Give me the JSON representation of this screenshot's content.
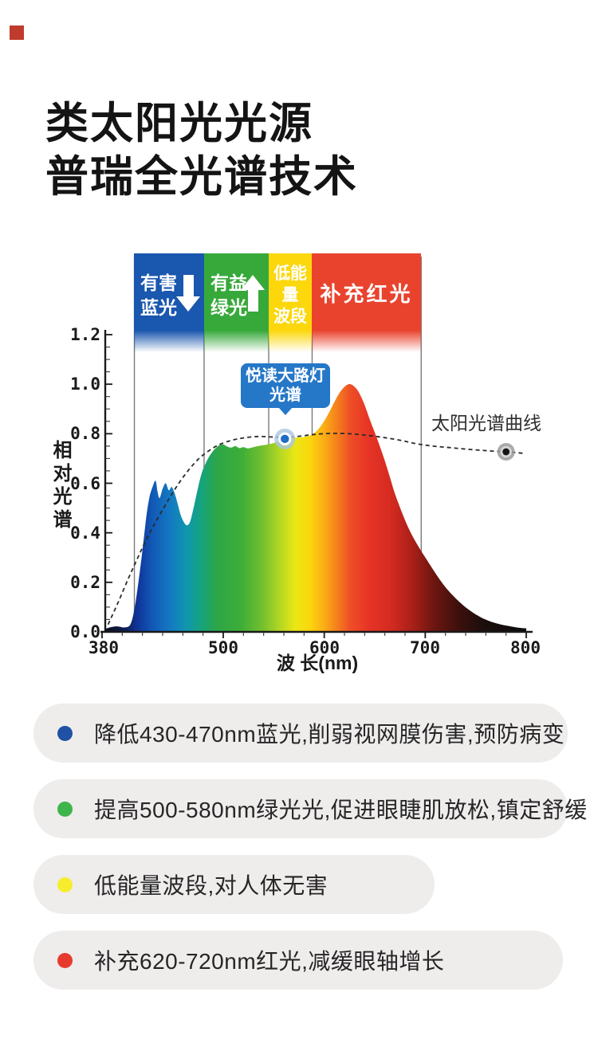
{
  "logo_color": "#bf3b2c",
  "title": {
    "line1": "类太阳光光源",
    "line2": "普瑞全光谱技术"
  },
  "chart": {
    "bands": [
      {
        "id": "blue",
        "lines": [
          "有害",
          "蓝光"
        ],
        "trend": "down",
        "color": "#1a57ae"
      },
      {
        "id": "green",
        "lines": [
          "有益",
          "绿光"
        ],
        "trend": "up",
        "color": "#37a93a"
      },
      {
        "id": "yellow",
        "lines": [
          "低能",
          "量",
          "波段"
        ],
        "trend": null,
        "color": "#fbd70c"
      },
      {
        "id": "red",
        "lines": [
          "补充红光"
        ],
        "trend": null,
        "color": "#e9432e"
      }
    ],
    "callout": {
      "line1": "悦读大路灯",
      "line2": "光谱",
      "bg": "#2577c8"
    },
    "sun_label": "太阳光谱曲线",
    "y_label": "相对光谱",
    "x_label": "波 长(nm)",
    "y_ticks": [
      "1.2",
      "1.0",
      "0.8",
      "0.6",
      "0.4",
      "0.2",
      "0.0"
    ],
    "x_ticks": [
      "380",
      "500",
      "600",
      "700",
      "800"
    ]
  },
  "chart_data": {
    "type": "area",
    "xlabel": "波 长(nm)",
    "ylabel": "相对光谱",
    "xlim": [
      380,
      800
    ],
    "ylim": [
      0.0,
      1.2
    ],
    "x_tick_values": [
      380,
      500,
      600,
      700,
      800
    ],
    "y_tick_values": [
      0.0,
      0.2,
      0.4,
      0.6,
      0.8,
      1.0,
      1.2
    ],
    "grid": false,
    "band_boundaries_nm": [
      412,
      481,
      545,
      588,
      696
    ],
    "series": [
      {
        "name": "悦读大路灯光谱",
        "style": "filled-spectrum-gradient",
        "points": [
          [
            383,
            0.012
          ],
          [
            390,
            0.02
          ],
          [
            396,
            0.022
          ],
          [
            402,
            0.018
          ],
          [
            408,
            0.03
          ],
          [
            412,
            0.09
          ],
          [
            416,
            0.2
          ],
          [
            420,
            0.33
          ],
          [
            424,
            0.47
          ],
          [
            427,
            0.545
          ],
          [
            430,
            0.585
          ],
          [
            433,
            0.61
          ],
          [
            435,
            0.565
          ],
          [
            437,
            0.54
          ],
          [
            440,
            0.578
          ],
          [
            443,
            0.6
          ],
          [
            446,
            0.572
          ],
          [
            449,
            0.585
          ],
          [
            452,
            0.558
          ],
          [
            455,
            0.515
          ],
          [
            458,
            0.47
          ],
          [
            461,
            0.443
          ],
          [
            464,
            0.43
          ],
          [
            467,
            0.443
          ],
          [
            470,
            0.49
          ],
          [
            473,
            0.545
          ],
          [
            476,
            0.6
          ],
          [
            479,
            0.645
          ],
          [
            482,
            0.675
          ],
          [
            485,
            0.7
          ],
          [
            488,
            0.72
          ],
          [
            492,
            0.74
          ],
          [
            496,
            0.753
          ],
          [
            500,
            0.757
          ],
          [
            504,
            0.748
          ],
          [
            508,
            0.744
          ],
          [
            512,
            0.75
          ],
          [
            516,
            0.742
          ],
          [
            520,
            0.746
          ],
          [
            524,
            0.741
          ],
          [
            528,
            0.744
          ],
          [
            532,
            0.748
          ],
          [
            537,
            0.752
          ],
          [
            542,
            0.755
          ],
          [
            548,
            0.76
          ],
          [
            554,
            0.768
          ],
          [
            560,
            0.776
          ],
          [
            566,
            0.781
          ],
          [
            572,
            0.784
          ],
          [
            578,
            0.786
          ],
          [
            584,
            0.79
          ],
          [
            589,
            0.8
          ],
          [
            594,
            0.818
          ],
          [
            599,
            0.845
          ],
          [
            604,
            0.88
          ],
          [
            609,
            0.92
          ],
          [
            614,
            0.958
          ],
          [
            619,
            0.985
          ],
          [
            623,
            0.998
          ],
          [
            626,
            1.0
          ],
          [
            629,
            0.993
          ],
          [
            633,
            0.975
          ],
          [
            637,
            0.945
          ],
          [
            641,
            0.905
          ],
          [
            645,
            0.858
          ],
          [
            650,
            0.805
          ],
          [
            655,
            0.75
          ],
          [
            660,
            0.69
          ],
          [
            665,
            0.625
          ],
          [
            670,
            0.558
          ],
          [
            676,
            0.492
          ],
          [
            682,
            0.432
          ],
          [
            688,
            0.382
          ],
          [
            695,
            0.333
          ],
          [
            702,
            0.288
          ],
          [
            709,
            0.244
          ],
          [
            716,
            0.202
          ],
          [
            723,
            0.166
          ],
          [
            730,
            0.136
          ],
          [
            738,
            0.106
          ],
          [
            746,
            0.081
          ],
          [
            754,
            0.061
          ],
          [
            762,
            0.046
          ],
          [
            770,
            0.035
          ],
          [
            778,
            0.027
          ],
          [
            786,
            0.021
          ],
          [
            794,
            0.016
          ],
          [
            800,
            0.014
          ]
        ]
      },
      {
        "name": "太阳光谱曲线",
        "style": "dashed",
        "points": [
          [
            386,
            0.03
          ],
          [
            396,
            0.12
          ],
          [
            406,
            0.215
          ],
          [
            416,
            0.305
          ],
          [
            426,
            0.39
          ],
          [
            436,
            0.465
          ],
          [
            446,
            0.535
          ],
          [
            456,
            0.6
          ],
          [
            466,
            0.655
          ],
          [
            476,
            0.7
          ],
          [
            486,
            0.732
          ],
          [
            496,
            0.756
          ],
          [
            508,
            0.773
          ],
          [
            520,
            0.783
          ],
          [
            534,
            0.789
          ],
          [
            548,
            0.787
          ],
          [
            562,
            0.785
          ],
          [
            576,
            0.79
          ],
          [
            590,
            0.797
          ],
          [
            604,
            0.801
          ],
          [
            618,
            0.801
          ],
          [
            632,
            0.798
          ],
          [
            645,
            0.792
          ],
          [
            660,
            0.784
          ],
          [
            676,
            0.773
          ],
          [
            692,
            0.759
          ],
          [
            708,
            0.75
          ],
          [
            724,
            0.744
          ],
          [
            740,
            0.738
          ],
          [
            756,
            0.733
          ],
          [
            770,
            0.729
          ],
          [
            783,
            0.726
          ],
          [
            797,
            0.721
          ]
        ]
      }
    ],
    "annotations": [
      {
        "type": "marker",
        "style": "blue-ring",
        "label": "悦读大路灯光谱",
        "x": 561,
        "y": 0.779
      },
      {
        "type": "marker",
        "style": "dark-dot",
        "label": "太阳光谱曲线",
        "x": 780,
        "y": 0.727
      }
    ]
  },
  "bullets": [
    {
      "dot_color": "#1f51a5",
      "text": "降低430-470nm蓝光,削弱视网膜伤害,预防病变"
    },
    {
      "dot_color": "#3db54a",
      "text": "提高500-580nm绿光光,促进眼睫肌放松,镇定舒缓"
    },
    {
      "dot_color": "#f6ed2d",
      "text": "低能量波段,对人体无害"
    },
    {
      "dot_color": "#e73a2e",
      "text": "补充620-720nm红光,减缓眼轴增长"
    }
  ]
}
